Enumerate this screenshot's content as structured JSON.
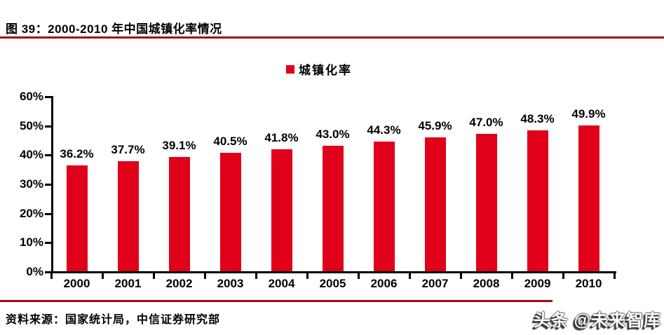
{
  "header": {
    "title": "图 39：2000-2010 年中国城镇化率情况"
  },
  "legend": {
    "label": "城镇化率"
  },
  "chart_data": {
    "type": "bar",
    "title": "城镇化率",
    "categories": [
      "2000",
      "2001",
      "2002",
      "2003",
      "2004",
      "2005",
      "2006",
      "2007",
      "2008",
      "2009",
      "2010"
    ],
    "values": [
      36.2,
      37.7,
      39.1,
      40.5,
      41.8,
      43.0,
      44.3,
      45.9,
      47.0,
      48.3,
      49.9
    ],
    "value_labels": [
      "36.2%",
      "37.7%",
      "39.1%",
      "40.5%",
      "41.8%",
      "43.0%",
      "44.3%",
      "45.9%",
      "47.0%",
      "48.3%",
      "49.9%"
    ],
    "xlabel": "",
    "ylabel": "",
    "ylim": [
      0,
      60
    ],
    "y_ticks": [
      0,
      10,
      20,
      30,
      40,
      50,
      60
    ],
    "y_tick_labels": [
      "0%",
      "10%",
      "20%",
      "30%",
      "40%",
      "50%",
      "60%"
    ],
    "legend": [
      "城镇化率"
    ],
    "legend_position": "top-center",
    "grid": false,
    "bar_color": "#E00019",
    "axis_color": "#000000"
  },
  "colors": {
    "accent_red": "#E00019",
    "rule_dark_red": "#9E0E12",
    "text": "#000000"
  },
  "footer": {
    "source": "资料来源：国家统计局，中信证券研究部"
  },
  "watermark": {
    "text": "头条 @未来智库"
  }
}
